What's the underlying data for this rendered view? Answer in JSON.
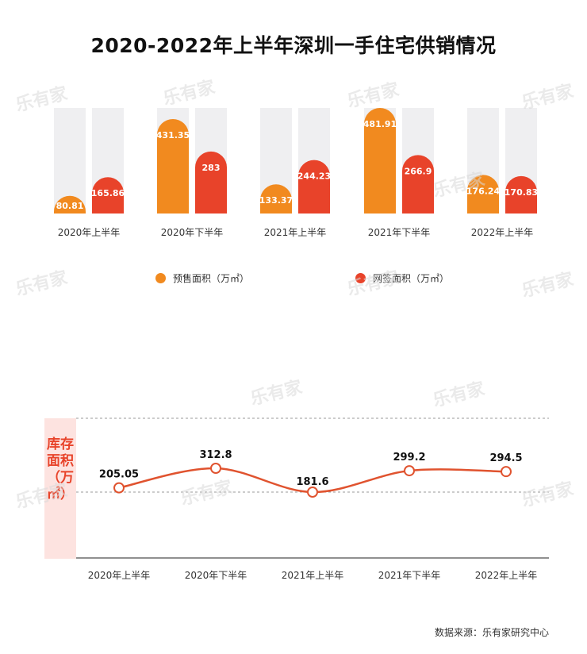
{
  "title": "2020-2022年上半年深圳一手住宅供销情况",
  "source": "数据来源：乐有家研究中心",
  "watermark": "乐有家",
  "colors": {
    "presale": "#f18a1f",
    "signed": "#e8432a",
    "track": "#efeff1",
    "line": "#e0532f"
  },
  "chart_data": [
    {
      "type": "bar",
      "categories": [
        "2020年上半年",
        "2020年下半年",
        "2021年上半年",
        "2021年下半年",
        "2022年上半年"
      ],
      "series": [
        {
          "name": "预售面积（万㎡）",
          "values": [
            80.81,
            431.35,
            133.37,
            481.91,
            176.24
          ]
        },
        {
          "name": "网签面积（万㎡）",
          "values": [
            165.86,
            283,
            244.23,
            266.9,
            170.83
          ]
        }
      ],
      "legend": "bottom"
    },
    {
      "type": "line",
      "categories": [
        "2020年上半年",
        "2020年下半年",
        "2021年上半年",
        "2021年下半年",
        "2022年上半年"
      ],
      "series": [
        {
          "name": "",
          "values": [
            205.05,
            312.8,
            181.6,
            299.2,
            294.5
          ]
        }
      ],
      "ylabel": "库存面积（万㎡）",
      "grid": true
    }
  ]
}
